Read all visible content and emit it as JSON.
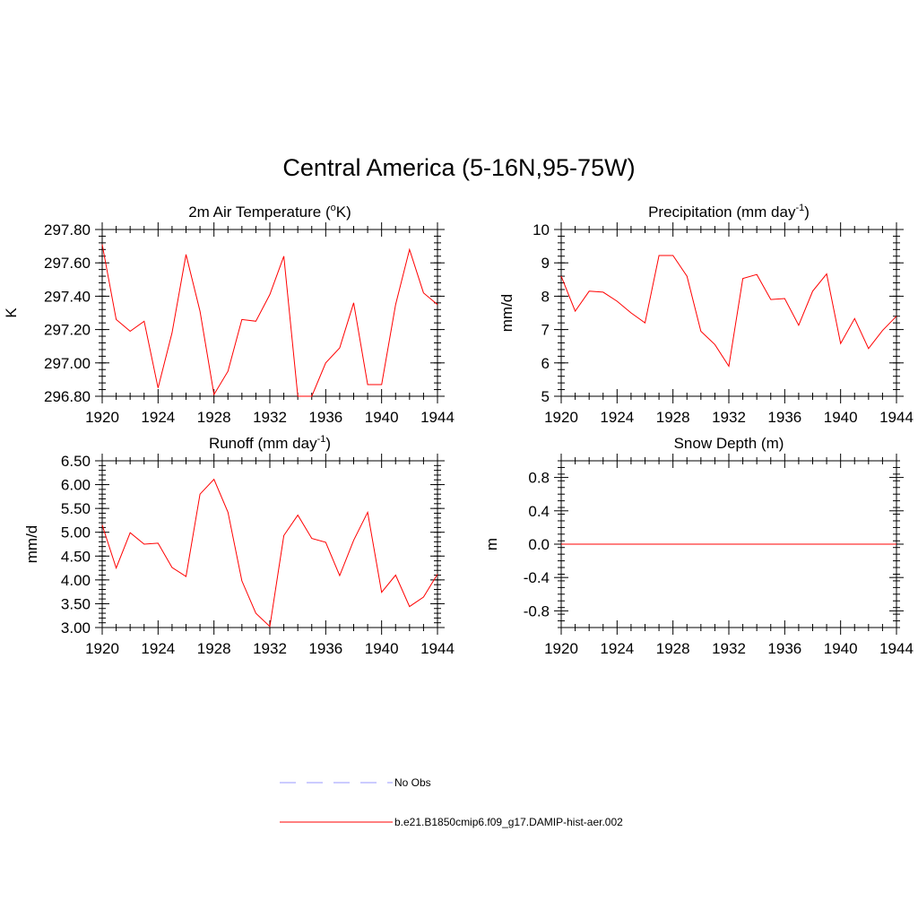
{
  "title": "Central America (5-16N,95-75W)",
  "legend": [
    {
      "label": "No Obs",
      "color": "#9999ff",
      "style": "dashed"
    },
    {
      "label": "b.e21.B1850cmip6.f09_g17.DAMIP-hist-aer.002",
      "color": "#ff0000",
      "style": "solid"
    }
  ],
  "chart_data": [
    {
      "type": "line",
      "title": "2m Air Temperature (°K)",
      "title_parts": [
        "2m Air Temperature (",
        "o",
        "K)"
      ],
      "xlabel": "",
      "ylabel": "K",
      "xlim": [
        1920,
        1944
      ],
      "ylim": [
        296.8,
        297.8
      ],
      "xticks": [
        "1920",
        "1924",
        "1928",
        "1932",
        "1936",
        "1940",
        "1944"
      ],
      "yticks": [
        "296.80",
        "297.00",
        "297.20",
        "297.40",
        "297.60",
        "297.80"
      ],
      "grid": false,
      "series": [
        {
          "name": "b.e21.B1850cmip6.f09_g17.DAMIP-hist-aer.002",
          "color": "#ff0000",
          "x": [
            1920,
            1921,
            1922,
            1923,
            1924,
            1925,
            1926,
            1927,
            1928,
            1929,
            1930,
            1931,
            1932,
            1933,
            1934,
            1935,
            1936,
            1937,
            1938,
            1939,
            1940,
            1941,
            1942,
            1943,
            1944
          ],
          "y": [
            297.71,
            297.26,
            297.19,
            297.25,
            296.85,
            297.18,
            297.65,
            297.31,
            296.81,
            296.95,
            297.26,
            297.25,
            297.41,
            297.64,
            296.8,
            296.8,
            297.0,
            297.09,
            297.36,
            296.87,
            296.87,
            297.35,
            297.68,
            297.42,
            297.35
          ]
        }
      ]
    },
    {
      "type": "line",
      "title": "Precipitation (mm day-1)",
      "title_parts": [
        "Precipitation (mm day",
        "-1",
        ")"
      ],
      "xlabel": "",
      "ylabel": "mm/d",
      "xlim": [
        1920,
        1944
      ],
      "ylim": [
        5,
        10
      ],
      "xticks": [
        "1920",
        "1924",
        "1928",
        "1932",
        "1936",
        "1940",
        "1944"
      ],
      "yticks": [
        "5",
        "6",
        "7",
        "8",
        "9",
        "10"
      ],
      "grid": false,
      "series": [
        {
          "name": "b.e21.B1850cmip6.f09_g17.DAMIP-hist-aer.002",
          "color": "#ff0000",
          "x": [
            1920,
            1921,
            1922,
            1923,
            1924,
            1925,
            1926,
            1927,
            1928,
            1929,
            1930,
            1931,
            1932,
            1933,
            1934,
            1935,
            1936,
            1937,
            1938,
            1939,
            1940,
            1941,
            1942,
            1943,
            1944
          ],
          "y": [
            8.6,
            7.55,
            8.15,
            8.12,
            7.85,
            7.5,
            7.2,
            9.22,
            9.22,
            8.6,
            6.95,
            6.55,
            5.9,
            8.53,
            8.65,
            7.9,
            7.93,
            7.13,
            8.15,
            8.67,
            6.58,
            7.33,
            6.43,
            6.97,
            7.4
          ]
        }
      ]
    },
    {
      "type": "line",
      "title": "Runoff (mm day-1)",
      "title_parts": [
        "Runoff (mm day",
        "-1",
        ")"
      ],
      "xlabel": "",
      "ylabel": "mm/d",
      "xlim": [
        1920,
        1944
      ],
      "ylim": [
        3.0,
        6.5
      ],
      "xticks": [
        "1920",
        "1924",
        "1928",
        "1932",
        "1936",
        "1940",
        "1944"
      ],
      "yticks": [
        "3.00",
        "3.50",
        "4.00",
        "4.50",
        "5.00",
        "5.50",
        "6.00",
        "6.50"
      ],
      "grid": false,
      "series": [
        {
          "name": "b.e21.B1850cmip6.f09_g17.DAMIP-hist-aer.002",
          "color": "#ff0000",
          "x": [
            1920,
            1921,
            1922,
            1923,
            1924,
            1925,
            1926,
            1927,
            1928,
            1929,
            1930,
            1931,
            1932,
            1933,
            1934,
            1935,
            1936,
            1937,
            1938,
            1939,
            1940,
            1941,
            1942,
            1943,
            1944
          ],
          "y": [
            5.15,
            4.25,
            4.99,
            4.75,
            4.77,
            4.26,
            4.07,
            5.8,
            6.11,
            5.42,
            3.98,
            3.3,
            3.02,
            4.93,
            5.36,
            4.87,
            4.79,
            4.09,
            4.83,
            5.42,
            3.74,
            4.1,
            3.44,
            3.64,
            4.12
          ]
        }
      ]
    },
    {
      "type": "line",
      "title": "Snow Depth (m)",
      "title_parts": [
        "Snow Depth (m)",
        "",
        ""
      ],
      "xlabel": "",
      "ylabel": "m",
      "xlim": [
        1920,
        1944
      ],
      "ylim": [
        -1.0,
        1.0
      ],
      "xticks": [
        "1920",
        "1924",
        "1928",
        "1932",
        "1936",
        "1940",
        "1944"
      ],
      "yticks": [
        "-0.8",
        "-0.4",
        "0.0",
        "0.4",
        "0.8"
      ],
      "ytick_values": [
        -0.8,
        -0.4,
        0.0,
        0.4,
        0.8
      ],
      "grid": false,
      "series": [
        {
          "name": "b.e21.B1850cmip6.f09_g17.DAMIP-hist-aer.002",
          "color": "#ff0000",
          "x": [
            1920,
            1921,
            1922,
            1923,
            1924,
            1925,
            1926,
            1927,
            1928,
            1929,
            1930,
            1931,
            1932,
            1933,
            1934,
            1935,
            1936,
            1937,
            1938,
            1939,
            1940,
            1941,
            1942,
            1943,
            1944
          ],
          "y": [
            0,
            0,
            0,
            0,
            0,
            0,
            0,
            0,
            0,
            0,
            0,
            0,
            0,
            0,
            0,
            0,
            0,
            0,
            0,
            0,
            0,
            0,
            0,
            0,
            0
          ]
        }
      ]
    }
  ]
}
